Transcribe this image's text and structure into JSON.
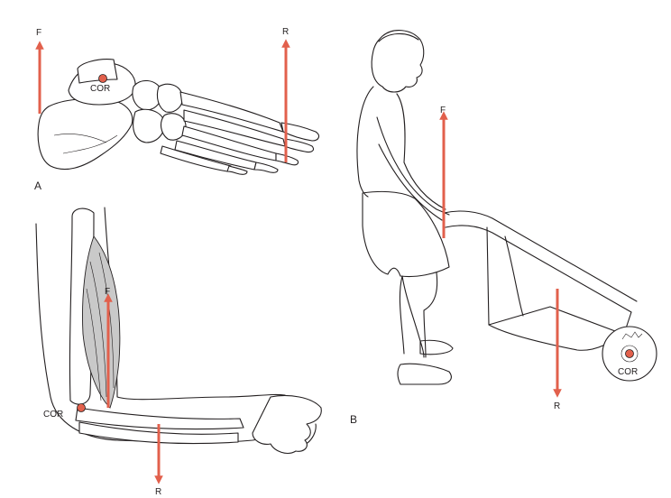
{
  "labels": {
    "foot_force": "F",
    "foot_resistance": "R",
    "foot_cor": "COR",
    "panel_a": "A",
    "arm_force": "F",
    "arm_cor": "COR",
    "arm_resistance": "R",
    "barrow_force": "F",
    "barrow_resistance": "R",
    "barrow_cor": "COR",
    "panel_b": "B"
  },
  "colors": {
    "force_arrow": "#e2604c",
    "line_art": "#231f20",
    "muscle_shade": "#c9c9c9"
  }
}
